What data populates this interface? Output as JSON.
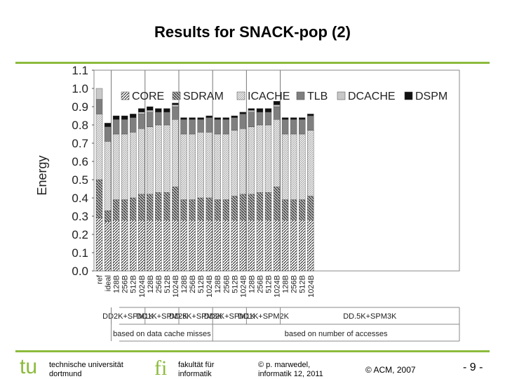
{
  "slide": {
    "title": "Results for SNACK-pop (2)",
    "page_number": "- 9 -",
    "accent_color": "#8cbb3c"
  },
  "footer": {
    "institution_line1": "technische universität",
    "institution_line2": "dortmund",
    "faculty_line1": "fakultät für",
    "faculty_line2": "informatik",
    "author_line1": "© p. marwedel,",
    "author_line2": "informatik 12,  2011",
    "copyright": "© ACM, 2007",
    "logo_tu": "tu",
    "logo_fi": "fi"
  },
  "chart_data": {
    "type": "bar",
    "stacked": true,
    "ylabel": "Energy",
    "ylim": [
      0,
      1.1
    ],
    "yticks": [
      "0.0",
      "0.1",
      "0.2",
      "0.3",
      "0.4",
      "0.5",
      "0.6",
      "0.7",
      "0.8",
      "0.9",
      "1.0",
      "1.1"
    ],
    "categories": [
      "ref",
      "ideal",
      "128B",
      "256B",
      "512B",
      "1024B",
      "128B",
      "256B",
      "512B",
      "1024B",
      "128B",
      "256B",
      "512B",
      "1024B",
      "128B",
      "256B",
      "512B",
      "1024B",
      "128B",
      "256B",
      "512B",
      "1024B",
      "128B",
      "256B",
      "512B",
      "1024B"
    ],
    "series": [
      {
        "name": "CORE",
        "values": [
          0.29,
          0.27,
          0.28,
          0.28,
          0.28,
          0.28,
          0.28,
          0.28,
          0.28,
          0.28,
          0.28,
          0.28,
          0.28,
          0.28,
          0.28,
          0.28,
          0.28,
          0.28,
          0.28,
          0.28,
          0.28,
          0.28,
          0.28,
          0.28,
          0.28,
          0.28
        ]
      },
      {
        "name": "SDRAM",
        "values": [
          0.21,
          0.06,
          0.11,
          0.11,
          0.12,
          0.14,
          0.14,
          0.15,
          0.15,
          0.18,
          0.11,
          0.11,
          0.12,
          0.12,
          0.11,
          0.11,
          0.13,
          0.14,
          0.14,
          0.15,
          0.15,
          0.18,
          0.11,
          0.11,
          0.11,
          0.13
        ]
      },
      {
        "name": "ICACHE",
        "values": [
          0.36,
          0.38,
          0.36,
          0.36,
          0.36,
          0.36,
          0.37,
          0.37,
          0.37,
          0.37,
          0.36,
          0.36,
          0.36,
          0.36,
          0.36,
          0.36,
          0.36,
          0.36,
          0.37,
          0.37,
          0.37,
          0.37,
          0.36,
          0.36,
          0.36,
          0.36
        ]
      },
      {
        "name": "TLB",
        "values": [
          0.08,
          0.08,
          0.08,
          0.08,
          0.08,
          0.08,
          0.08,
          0.07,
          0.07,
          0.07,
          0.08,
          0.08,
          0.07,
          0.08,
          0.08,
          0.08,
          0.07,
          0.08,
          0.08,
          0.07,
          0.07,
          0.07,
          0.08,
          0.08,
          0.08,
          0.08
        ]
      },
      {
        "name": "DCACHE",
        "values": [
          0.06,
          0.0,
          0.0,
          0.0,
          0.0,
          0.01,
          0.01,
          0.0,
          0.0,
          0.01,
          0.0,
          0.0,
          0.0,
          0.0,
          0.0,
          0.0,
          0.0,
          0.0,
          0.01,
          0.0,
          0.0,
          0.01,
          0.0,
          0.0,
          0.0,
          0.0
        ]
      },
      {
        "name": "DSPM",
        "values": [
          0.0,
          0.02,
          0.02,
          0.02,
          0.02,
          0.02,
          0.02,
          0.02,
          0.02,
          0.01,
          0.01,
          0.01,
          0.01,
          0.01,
          0.01,
          0.01,
          0.01,
          0.01,
          0.01,
          0.02,
          0.02,
          0.02,
          0.01,
          0.01,
          0.01,
          0.01
        ]
      }
    ],
    "group_labels": [
      "DD2K+SPM1K",
      "DD1K+SPM2K",
      "DD.5K+SPM3K",
      "DD2K+SPM1K",
      "DD1K+SPM2K",
      "DD.5K+SPM3K"
    ],
    "super_groups": [
      "based on data cache misses",
      "based on number of accesses"
    ],
    "legend": [
      "CORE",
      "SDRAM",
      "ICACHE",
      "TLB",
      "DCACHE",
      "DSPM"
    ],
    "legend_position": "top",
    "grid": "vertical group separators"
  }
}
